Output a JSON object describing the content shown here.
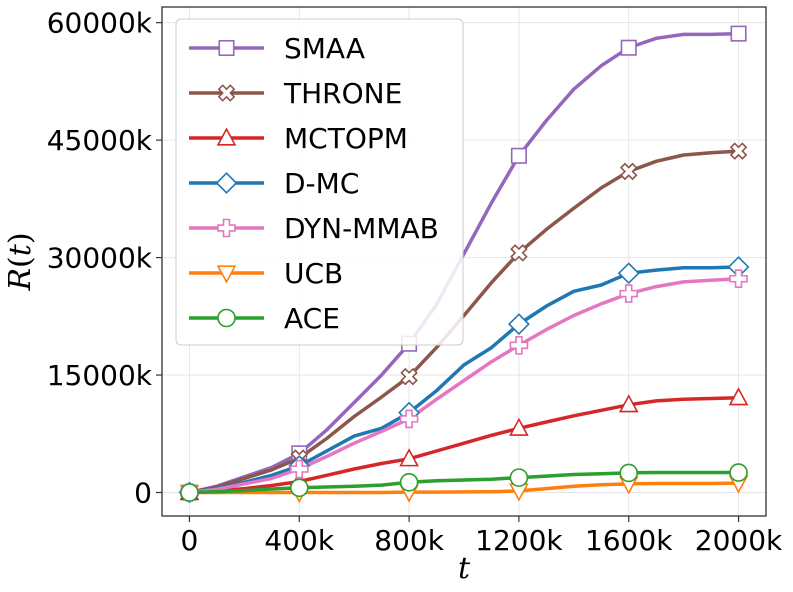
{
  "chart_data": {
    "type": "line",
    "xlabel": "t",
    "ylabel": "R(t)",
    "xlim": [
      -100,
      2100
    ],
    "ylim": [
      -3000,
      62000
    ],
    "x_ticks": [
      0,
      400,
      800,
      1200,
      1600,
      2000
    ],
    "x_tick_labels": [
      "0",
      "400k",
      "800k",
      "1200k",
      "1600k",
      "2000k"
    ],
    "y_ticks": [
      0,
      15000,
      30000,
      45000,
      60000
    ],
    "y_tick_labels": [
      "0",
      "15000k",
      "30000k",
      "45000k",
      "60000k"
    ],
    "grid": true,
    "legend_position": "top-left",
    "series": [
      {
        "name": "SMAA",
        "color": "#9467bd",
        "marker": "square",
        "x": [
          0,
          100,
          200,
          300,
          400,
          500,
          600,
          700,
          800,
          900,
          1000,
          1100,
          1200,
          1300,
          1400,
          1500,
          1600,
          1700,
          1800,
          1900,
          2000
        ],
        "y": [
          0,
          800,
          2000,
          3200,
          5000,
          8000,
          11500,
          15000,
          19000,
          24000,
          30500,
          37000,
          43000,
          47500,
          51500,
          54500,
          56800,
          58000,
          58500,
          58500,
          58600
        ],
        "marker_x": [
          0,
          400,
          800,
          1200,
          1600,
          2000
        ],
        "marker_y": [
          0,
          5000,
          19000,
          43000,
          56800,
          58600
        ]
      },
      {
        "name": "THRONE",
        "color": "#8c564b",
        "marker": "x",
        "x": [
          0,
          100,
          200,
          300,
          400,
          500,
          600,
          700,
          800,
          900,
          1000,
          1100,
          1200,
          1300,
          1400,
          1500,
          1600,
          1700,
          1800,
          1900,
          2000
        ],
        "y": [
          0,
          700,
          1800,
          2900,
          4400,
          6900,
          9700,
          12200,
          14800,
          18500,
          22600,
          26800,
          30600,
          33600,
          36300,
          38900,
          41000,
          42300,
          43100,
          43400,
          43600
        ],
        "marker_x": [
          0,
          400,
          800,
          1200,
          1600,
          2000
        ],
        "marker_y": [
          0,
          4400,
          14800,
          30600,
          41000,
          43600
        ]
      },
      {
        "name": "MCTOPM",
        "color": "#d62728",
        "marker": "triangle-up",
        "x": [
          0,
          100,
          200,
          300,
          400,
          500,
          600,
          700,
          800,
          900,
          1000,
          1100,
          1200,
          1300,
          1400,
          1500,
          1600,
          1700,
          1800,
          1900,
          2000
        ],
        "y": [
          0,
          200,
          500,
          900,
          1400,
          2200,
          3000,
          3700,
          4300,
          5300,
          6300,
          7300,
          8200,
          9000,
          9800,
          10500,
          11200,
          11700,
          11900,
          12000,
          12100
        ],
        "marker_x": [
          0,
          400,
          800,
          1200,
          1600,
          2000
        ],
        "marker_y": [
          0,
          1400,
          4300,
          8200,
          11200,
          12100
        ]
      },
      {
        "name": "D-MC",
        "color": "#1f77b4",
        "marker": "diamond",
        "x": [
          0,
          100,
          200,
          300,
          400,
          500,
          600,
          700,
          800,
          900,
          1000,
          1100,
          1200,
          1300,
          1400,
          1500,
          1600,
          1700,
          1800,
          1900,
          2000
        ],
        "y": [
          0,
          500,
          1300,
          2200,
          3400,
          5300,
          7200,
          8200,
          10200,
          13000,
          16300,
          18500,
          21500,
          23800,
          25700,
          26500,
          28000,
          28400,
          28700,
          28700,
          28800
        ],
        "marker_x": [
          0,
          400,
          800,
          1200,
          1600,
          2000
        ],
        "marker_y": [
          0,
          3400,
          10200,
          21500,
          28000,
          28800
        ]
      },
      {
        "name": "DYN-MMAB",
        "color": "#e377c2",
        "marker": "plus",
        "x": [
          0,
          100,
          200,
          300,
          400,
          500,
          600,
          700,
          800,
          900,
          1000,
          1100,
          1200,
          1300,
          1400,
          1500,
          1600,
          1700,
          1800,
          1900,
          2000
        ],
        "y": [
          0,
          400,
          1100,
          1800,
          3000,
          4600,
          6300,
          7800,
          9400,
          11900,
          14300,
          16700,
          18800,
          20800,
          22600,
          24100,
          25400,
          26300,
          26900,
          27100,
          27300
        ],
        "marker_x": [
          0,
          400,
          800,
          1200,
          1600,
          2000
        ],
        "marker_y": [
          0,
          3000,
          9400,
          18800,
          25400,
          27300
        ]
      },
      {
        "name": "UCB",
        "color": "#ff7f0e",
        "marker": "triangle-down",
        "x": [
          0,
          100,
          200,
          300,
          400,
          500,
          600,
          700,
          800,
          900,
          1000,
          1100,
          1200,
          1300,
          1400,
          1500,
          1600,
          1700,
          1800,
          1900,
          2000
        ],
        "y": [
          0,
          0,
          0,
          0,
          0,
          0,
          0,
          0,
          50,
          50,
          80,
          100,
          200,
          500,
          800,
          1000,
          1100,
          1150,
          1150,
          1150,
          1200
        ],
        "marker_x": [
          0,
          400,
          800,
          1200,
          1600,
          2000
        ],
        "marker_y": [
          0,
          0,
          50,
          200,
          1100,
          1200
        ]
      },
      {
        "name": "ACE",
        "color": "#2ca02c",
        "marker": "circle",
        "x": [
          0,
          100,
          200,
          300,
          400,
          500,
          600,
          700,
          800,
          900,
          1000,
          1100,
          1200,
          1300,
          1400,
          1500,
          1600,
          1700,
          1800,
          1900,
          2000
        ],
        "y": [
          0,
          100,
          250,
          450,
          600,
          700,
          800,
          950,
          1300,
          1500,
          1600,
          1700,
          1900,
          2100,
          2300,
          2400,
          2500,
          2550,
          2550,
          2550,
          2550
        ],
        "marker_x": [
          0,
          400,
          800,
          1200,
          1600,
          2000
        ],
        "marker_y": [
          0,
          600,
          1300,
          1900,
          2500,
          2550
        ]
      }
    ]
  }
}
